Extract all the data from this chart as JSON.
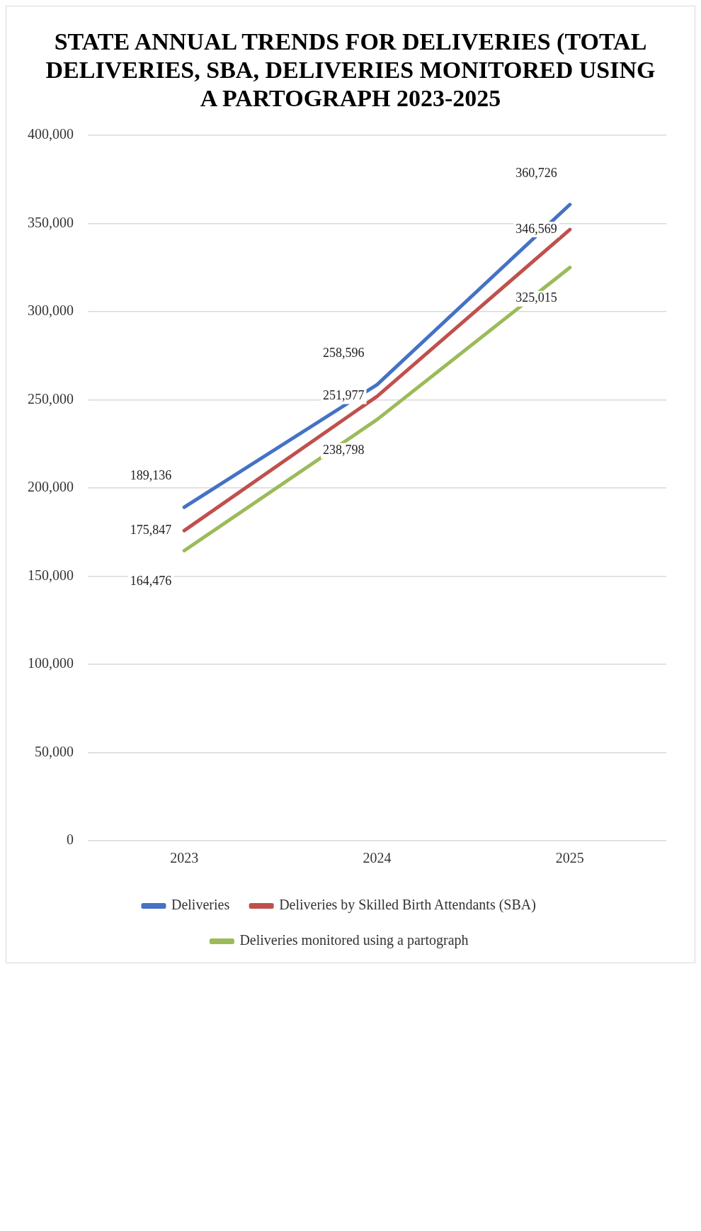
{
  "chart_data": {
    "type": "line",
    "title": "STATE ANNUAL TRENDS FOR DELIVERIES (TOTAL DELIVERIES, SBA, DELIVERIES MONITORED USING A PARTOGRAPH 2023-2025",
    "categories": [
      "2023",
      "2024",
      "2025"
    ],
    "series": [
      {
        "name": "Deliveries",
        "color": "#4472c4",
        "values": [
          189136,
          258596,
          360726
        ],
        "value_labels": [
          "189,136",
          "258,596",
          "360,726"
        ]
      },
      {
        "name": "Deliveries by Skilled Birth Attendants (SBA)",
        "color": "#c0504d",
        "values": [
          175847,
          251977,
          346569
        ],
        "value_labels": [
          "175,847",
          "251,977",
          "346,569"
        ]
      },
      {
        "name": "Deliveries monitored using a partograph",
        "color": "#9bbb59",
        "values": [
          164476,
          238798,
          325015
        ],
        "value_labels": [
          "164,476",
          "238,798",
          "325,015"
        ]
      }
    ],
    "ylim": [
      0,
      400000
    ],
    "yticks": [
      0,
      {
        "value": 50000,
        "label": "50,000"
      },
      {
        "value": 100000,
        "label": "100,000"
      },
      {
        "value": 150000,
        "label": "150,000"
      },
      {
        "value": 200000,
        "label": "200,000"
      },
      {
        "value": 250000,
        "label": "250,000"
      },
      {
        "value": 300000,
        "label": "300,000"
      },
      {
        "value": 350000,
        "label": "350,000"
      },
      {
        "value": 400000,
        "label": "400,000"
      }
    ],
    "grid": "y",
    "legend": "bottom",
    "marker": "none",
    "line_style": "solid"
  }
}
